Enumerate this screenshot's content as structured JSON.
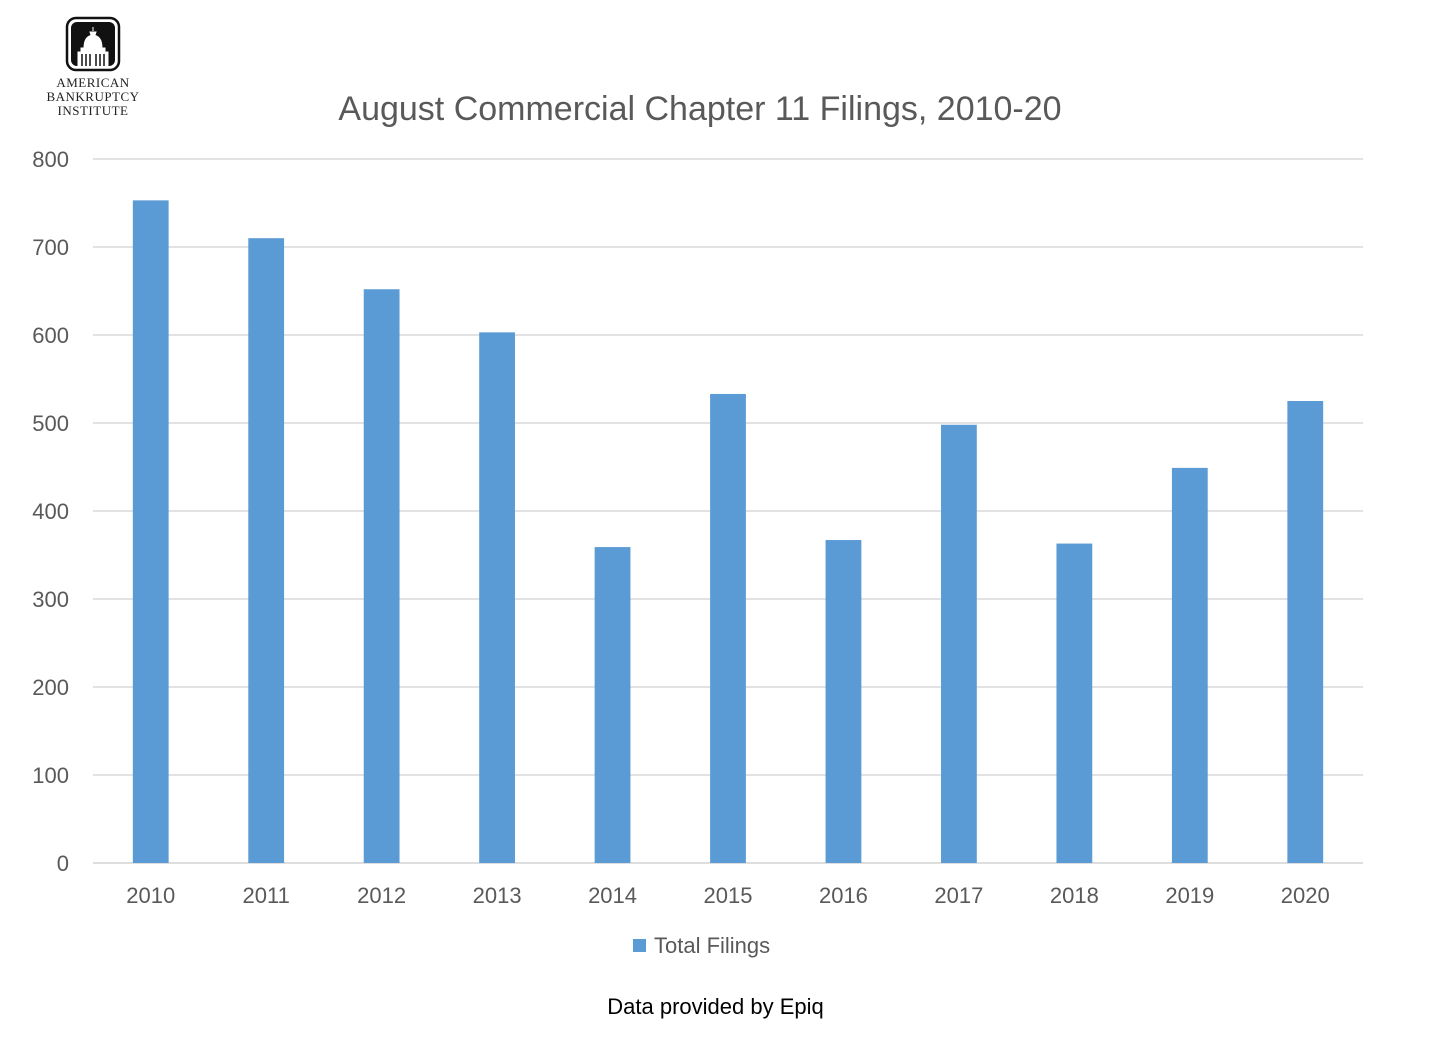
{
  "logo": {
    "icon": "capitol-dome-icon",
    "lines": [
      "American",
      "Bankruptcy",
      "Institute"
    ]
  },
  "chart_data": {
    "type": "bar",
    "title": "August Commercial Chapter 11 Filings, 2010-20",
    "categories": [
      "2010",
      "2011",
      "2012",
      "2013",
      "2014",
      "2015",
      "2016",
      "2017",
      "2018",
      "2019",
      "2020"
    ],
    "series": [
      {
        "name": "Total Filings",
        "values": [
          753,
          710,
          652,
          603,
          359,
          533,
          367,
          498,
          363,
          449,
          525
        ],
        "color": "#5b9bd5"
      }
    ],
    "xlabel": "",
    "ylabel": "",
    "ylim": [
      0,
      800
    ],
    "yticks": [
      0,
      100,
      200,
      300,
      400,
      500,
      600,
      700,
      800
    ],
    "grid": true,
    "legend": "bottom-center"
  },
  "footer": "Data provided by Epiq"
}
